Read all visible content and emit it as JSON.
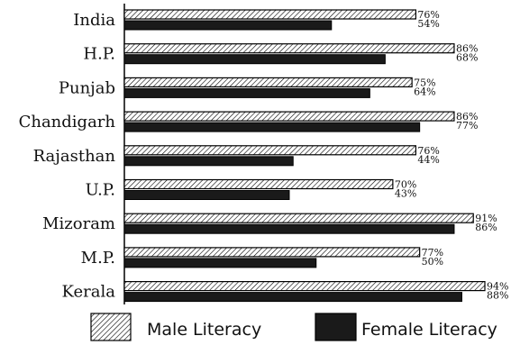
{
  "chart_data": {
    "type": "bar",
    "orientation": "horizontal",
    "categories": [
      "India",
      "H.P.",
      "Punjab",
      "Chandigarh",
      "Rajasthan",
      "U.P.",
      "Mizoram",
      "M.P.",
      "Kerala"
    ],
    "series": [
      {
        "name": "Male Literacy",
        "values": [
          76,
          86,
          75,
          86,
          76,
          70,
          91,
          77,
          94
        ],
        "labels": [
          "76%",
          "86%",
          "75%",
          "86%",
          "76%",
          "70%",
          "91%",
          "77%",
          "94%"
        ],
        "pattern": "diagonal-hatch"
      },
      {
        "name": "Female Literacy",
        "values": [
          54,
          68,
          64,
          77,
          44,
          43,
          86,
          50,
          88
        ],
        "labels": [
          "54%",
          "68%",
          "64%",
          "77%",
          "44%",
          "43%",
          "86%",
          "50%",
          "88%"
        ],
        "pattern": "solid"
      }
    ],
    "xlim": [
      0,
      94
    ],
    "grid": false,
    "legend_position": "bottom",
    "colors": {
      "male": "#ffffff",
      "female": "#1a1a1a",
      "outline": "#000000"
    }
  }
}
